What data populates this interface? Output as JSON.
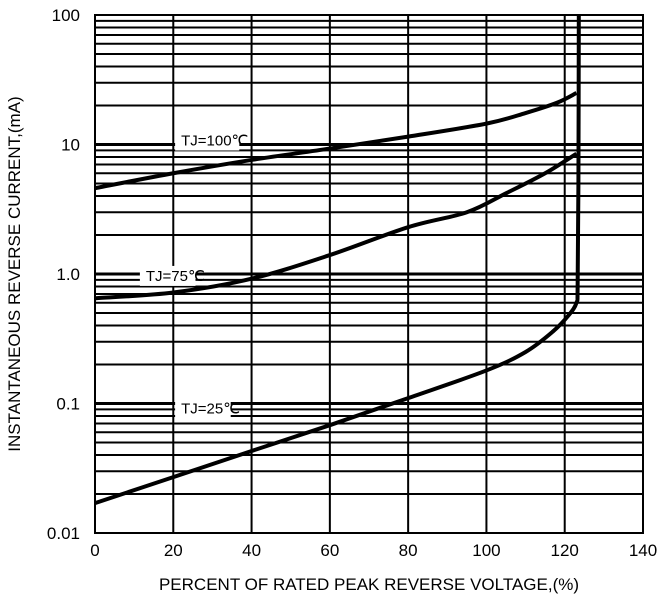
{
  "chart_data": {
    "type": "line",
    "title": "",
    "xlabel": "PERCENT OF RATED PEAK REVERSE VOLTAGE,(%)",
    "ylabel": "INSTANTANEOUS REVERSE CURRENT,(mA)",
    "xlim": [
      0,
      140
    ],
    "ylim": [
      0.01,
      100
    ],
    "yscale": "log",
    "grid": true,
    "x_ticks": [
      "0",
      "20",
      "40",
      "60",
      "80",
      "100",
      "120",
      "140"
    ],
    "y_ticks": [
      "0.01",
      "0.1",
      "1.0",
      "10",
      "100"
    ],
    "series": [
      {
        "name": "TJ=100℃",
        "points": [
          [
            0,
            4.6
          ],
          [
            20,
            6.0
          ],
          [
            40,
            7.6
          ],
          [
            60,
            9.3
          ],
          [
            80,
            11.5
          ],
          [
            100,
            14.5
          ],
          [
            110,
            17.5
          ],
          [
            118,
            21
          ],
          [
            123,
            25
          ]
        ]
      },
      {
        "name": "TJ=75℃",
        "points": [
          [
            0,
            0.65
          ],
          [
            20,
            0.72
          ],
          [
            40,
            0.92
          ],
          [
            60,
            1.4
          ],
          [
            80,
            2.3
          ],
          [
            95,
            3.0
          ],
          [
            105,
            4.2
          ],
          [
            115,
            6.0
          ],
          [
            123,
            8.5
          ]
        ]
      },
      {
        "name": "TJ=25℃",
        "points": [
          [
            0,
            0.017
          ],
          [
            20,
            0.027
          ],
          [
            40,
            0.043
          ],
          [
            60,
            0.068
          ],
          [
            80,
            0.11
          ],
          [
            100,
            0.18
          ],
          [
            110,
            0.25
          ],
          [
            117,
            0.36
          ],
          [
            121,
            0.48
          ],
          [
            123,
            0.6
          ],
          [
            123.3,
            0.8
          ],
          [
            123.5,
            5
          ],
          [
            123.6,
            100
          ]
        ]
      }
    ]
  }
}
